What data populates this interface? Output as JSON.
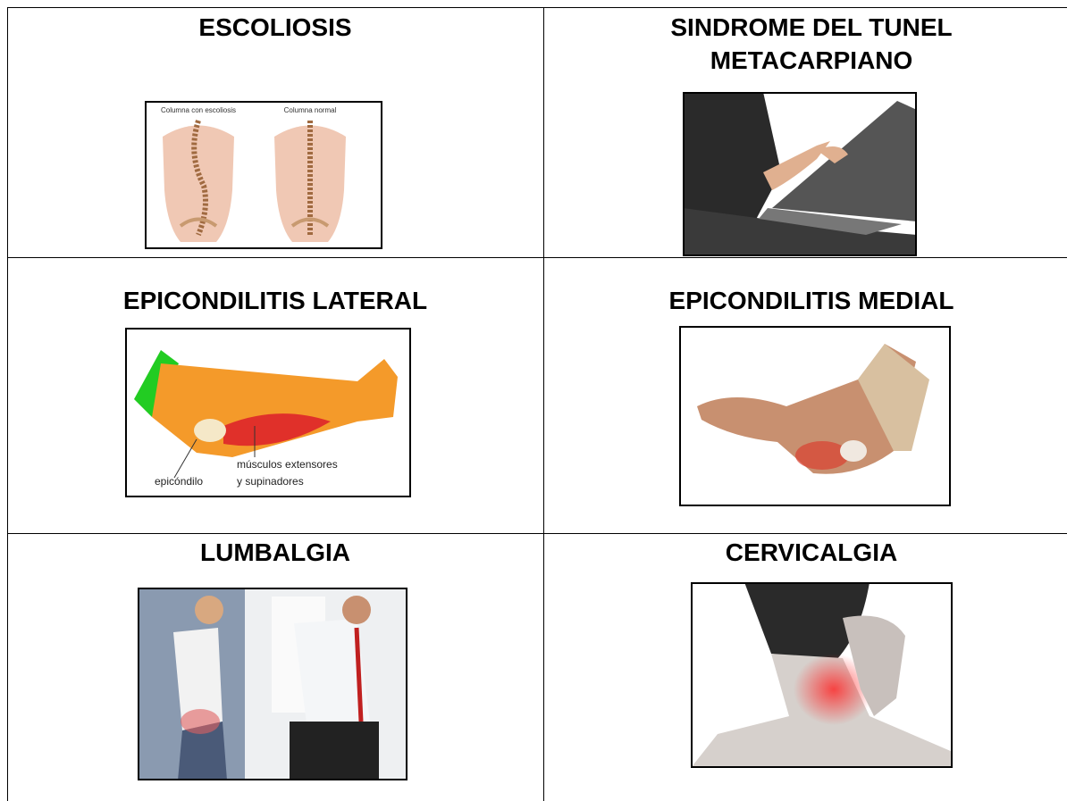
{
  "table": {
    "cells": [
      {
        "title_lines": [
          "ESCOLIOSIS"
        ],
        "image_labels": [
          "Columna con escoliosis",
          "Columna normal"
        ]
      },
      {
        "title_lines": [
          "SINDROME DEL TUNEL",
          "METACARPIANO"
        ]
      },
      {
        "title_lines": [
          "EPICONDILITIS LATERAL"
        ],
        "image_labels": [
          "músculos extensores",
          "y supinadores",
          "epicóndilo"
        ]
      },
      {
        "title_lines": [
          "EPICONDILITIS MEDIAL"
        ]
      },
      {
        "title_lines": [
          "LUMBALGIA"
        ]
      },
      {
        "title_lines": [
          "CERVICALGIA"
        ]
      }
    ]
  }
}
